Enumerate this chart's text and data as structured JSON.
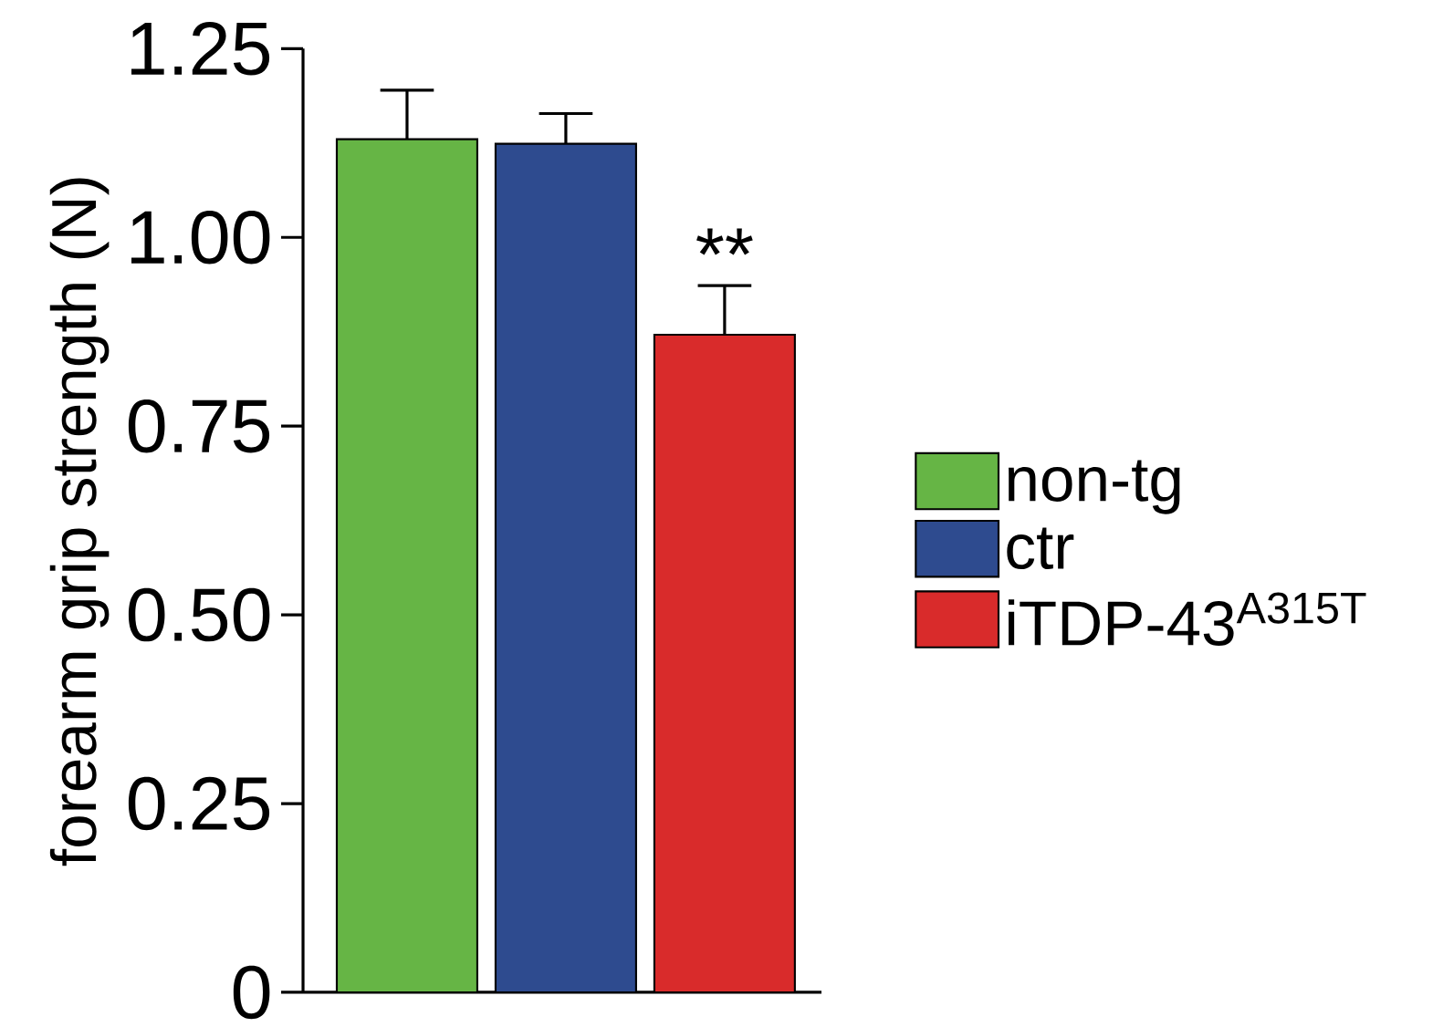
{
  "chart_data": {
    "type": "bar",
    "ylabel": "forearm grip strength (N)",
    "categories": [
      null,
      null,
      null
    ],
    "series": [
      {
        "name": "non-tg",
        "color": "#66b545",
        "values": [
          1.13,
          null,
          null
        ],
        "errors": [
          0.065,
          null,
          null
        ]
      },
      {
        "name": "ctr",
        "color": "#2e4b8f",
        "values": [
          null,
          1.124,
          null
        ],
        "errors": [
          null,
          0.04,
          null
        ]
      },
      {
        "name": "iTDP-43$^{A315T}$",
        "color": "#d92b2b",
        "values": [
          null,
          null,
          0.871
        ],
        "errors": [
          null,
          null,
          0.065
        ]
      }
    ],
    "ylim": [
      0,
      1.25
    ],
    "yticks": [
      {
        "value": 0,
        "label": "0"
      },
      0.25,
      {
        "value": 0.5,
        "label": "0.50"
      },
      0.75,
      {
        "value": 1.0,
        "label": "1.00"
      },
      1.25
    ],
    "tick_labels": "y",
    "legend": "right",
    "grid": false,
    "annotations": [
      "**"
    ]
  }
}
